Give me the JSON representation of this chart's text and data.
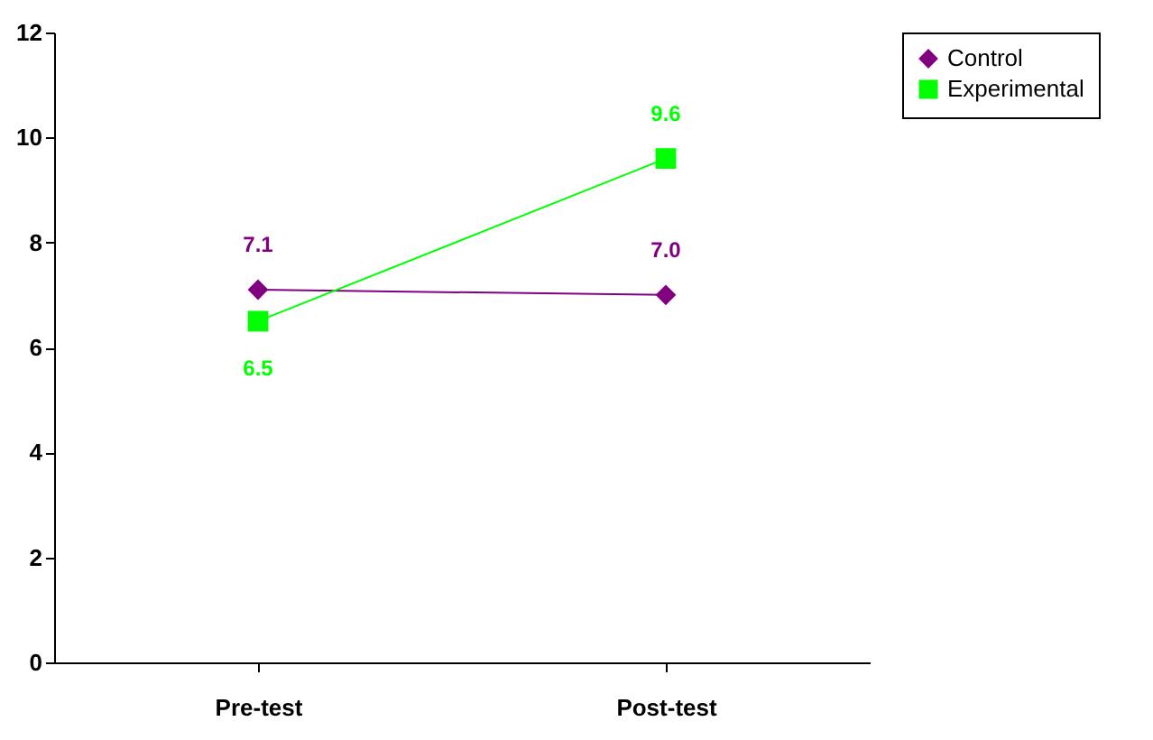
{
  "chart_data": {
    "type": "line",
    "categories": [
      "Pre-test",
      "Post-test"
    ],
    "series": [
      {
        "name": "Control",
        "color": "#800080",
        "marker": "diamond",
        "values": [
          7.1,
          7.0
        ],
        "value_labels": [
          "7.1",
          "7.0"
        ]
      },
      {
        "name": "Experimental",
        "color": "#00ff00",
        "marker": "square",
        "values": [
          6.5,
          9.6
        ],
        "value_labels": [
          "6.5",
          "9.6"
        ]
      }
    ],
    "ylim": [
      0,
      12
    ],
    "yticks": [
      0,
      2,
      4,
      6,
      8,
      10,
      12
    ],
    "grid": false,
    "legend": "right"
  }
}
